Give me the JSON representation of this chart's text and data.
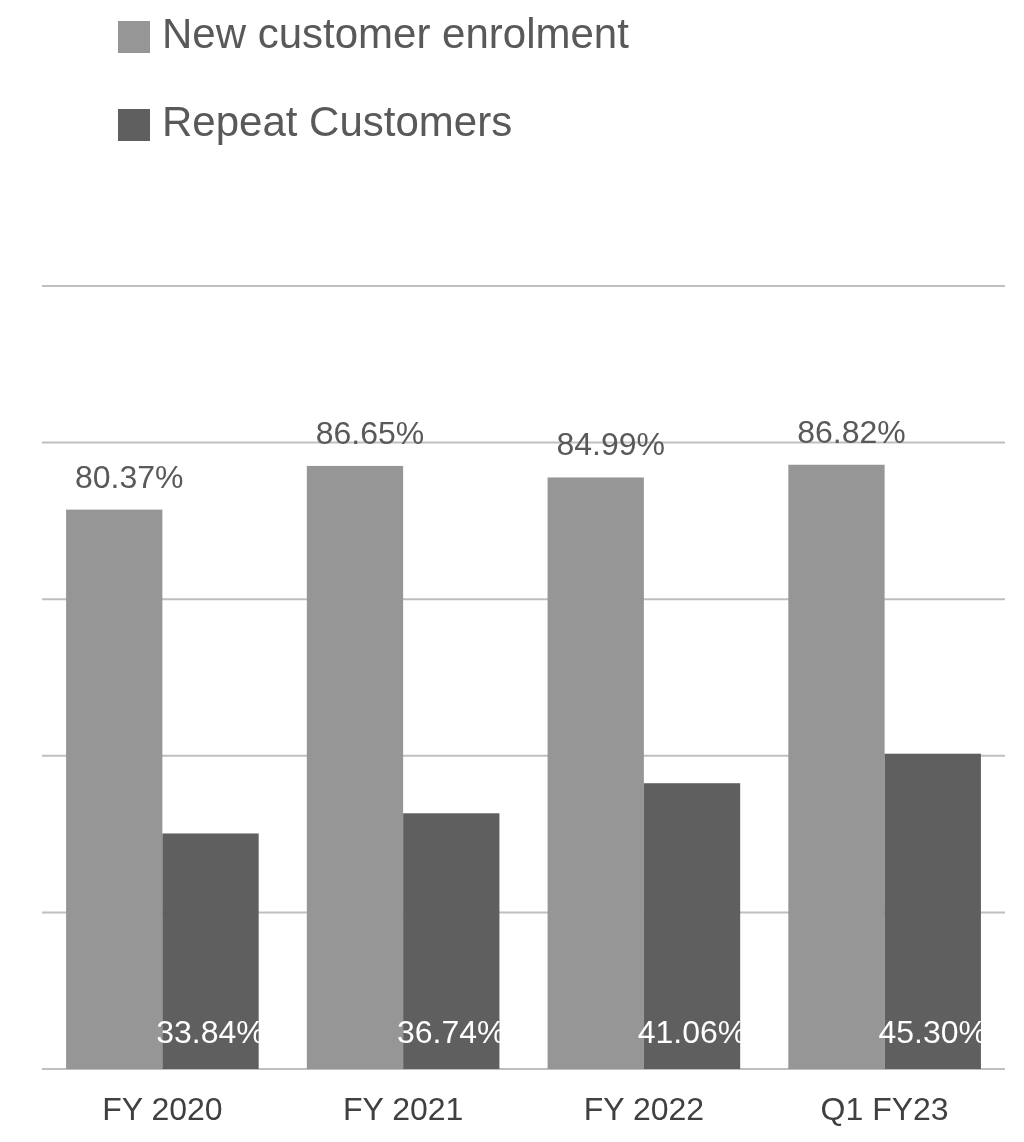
{
  "chart_data": {
    "type": "bar",
    "categories": [
      "FY 2020",
      "FY 2021",
      "FY 2022",
      "Q1 FY23"
    ],
    "series": [
      {
        "name": "New customer enrolment",
        "color": "#969696",
        "values": [
          80.37,
          86.65,
          84.99,
          86.82
        ],
        "value_labels": [
          "80.37%",
          "86.65%",
          "84.99%",
          "86.82%"
        ]
      },
      {
        "name": "Repeat Customers",
        "color": "#5f5f5f",
        "values": [
          33.84,
          36.74,
          41.06,
          45.3
        ],
        "value_labels": [
          "33.84%",
          "36.74%",
          "41.06%",
          "45.30%"
        ]
      }
    ],
    "ylim": [
      0,
      112.5
    ],
    "yticks": [
      {
        "value": 0,
        "label": null
      },
      {
        "value": 22.5,
        "label": null
      },
      {
        "value": 45,
        "label": null
      },
      {
        "value": 67.5,
        "label": null
      },
      {
        "value": 90,
        "label": null
      },
      {
        "value": 112.5,
        "label": null
      }
    ],
    "grid": "y",
    "legend": "top left",
    "tick_labels": "x"
  }
}
